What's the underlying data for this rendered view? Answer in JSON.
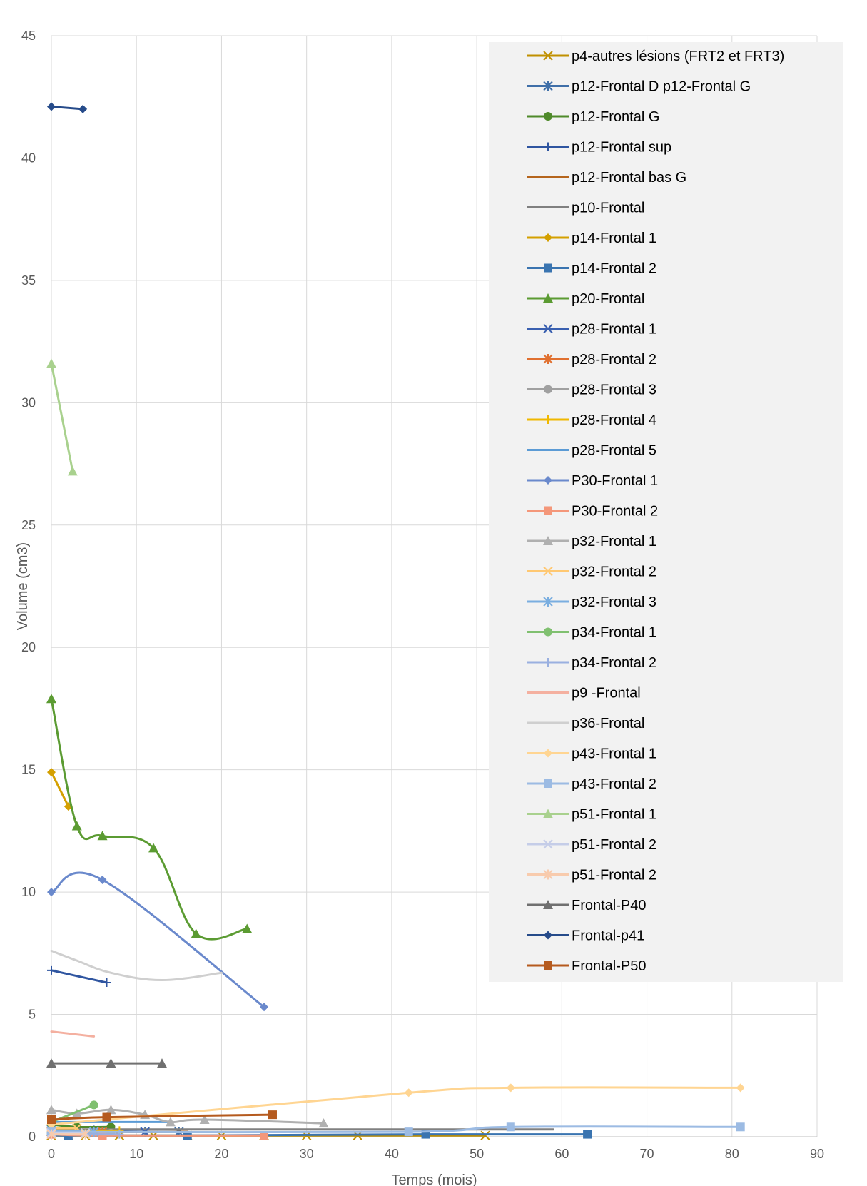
{
  "chart_data": {
    "type": "line",
    "xlabel": "Temps (mois)",
    "ylabel": "Volume (cm3)",
    "xlim": [
      0,
      90
    ],
    "ylim": [
      0,
      45
    ],
    "x_ticks": [
      "0",
      "10",
      "20",
      "30",
      "40",
      "50",
      "60",
      "70",
      "80",
      "90"
    ],
    "y_ticks": [
      "0",
      "5",
      "10",
      "15",
      "20",
      "25",
      "30",
      "35",
      "40",
      "45"
    ],
    "grid": true,
    "legend_position": "top-right",
    "series": [
      {
        "name": "p4-autres lésions (FRT2 et FRT3)",
        "color": "#c09000",
        "marker": "x",
        "x": [
          0,
          2,
          4,
          8,
          12,
          16,
          20,
          25,
          30,
          36,
          51
        ],
        "y": [
          0.05,
          0.05,
          0.05,
          0.05,
          0.05,
          0.05,
          0.05,
          0.05,
          0.05,
          0.05,
          0.05
        ]
      },
      {
        "name": "p12-Frontal D p12-Frontal G",
        "color": "#3f6fa8",
        "marker": "asterisk",
        "x": [
          0,
          5,
          11,
          15
        ],
        "y": [
          0.3,
          0.25,
          0.2,
          0.2
        ]
      },
      {
        "name": "p12-Frontal G",
        "color": "#4f8a2a",
        "marker": "circle",
        "x": [
          0,
          3,
          7
        ],
        "y": [
          0.5,
          0.4,
          0.4
        ]
      },
      {
        "name": "p12-Frontal sup",
        "color": "#2f55a0",
        "marker": "plus",
        "x": [
          0,
          6.5
        ],
        "y": [
          6.8,
          6.3
        ]
      },
      {
        "name": "p12-Frontal bas G",
        "color": "#b5651d",
        "marker": "none",
        "x": [
          0,
          8,
          16
        ],
        "y": [
          0.3,
          0.2,
          0.2
        ]
      },
      {
        "name": "p10-Frontal",
        "color": "#808080",
        "marker": "none",
        "x": [
          0,
          20,
          40,
          59
        ],
        "y": [
          0.3,
          0.3,
          0.3,
          0.3
        ]
      },
      {
        "name": "p14-Frontal 1",
        "color": "#d4a000",
        "marker": "diamond",
        "x": [
          0,
          2
        ],
        "y": [
          14.9,
          13.5
        ]
      },
      {
        "name": "p14-Frontal 2",
        "color": "#3a74b0",
        "marker": "square",
        "x": [
          0,
          2,
          16,
          44,
          63
        ],
        "y": [
          0.1,
          0.05,
          0.05,
          0.1,
          0.1
        ]
      },
      {
        "name": "p20-Frontal",
        "color": "#5b9b32",
        "marker": "triangle",
        "x": [
          0,
          3,
          6,
          12,
          17,
          23
        ],
        "y": [
          17.9,
          12.7,
          12.3,
          11.8,
          8.3,
          8.5
        ]
      },
      {
        "name": "p28-Frontal 1",
        "color": "#3a60b0",
        "marker": "x",
        "x": [
          0,
          11
        ],
        "y": [
          0.2,
          0.2
        ]
      },
      {
        "name": "p28-Frontal 2",
        "color": "#e07030",
        "marker": "asterisk",
        "x": [
          0,
          6
        ],
        "y": [
          0.2,
          0.2
        ]
      },
      {
        "name": "p28-Frontal 3",
        "color": "#a0a0a0",
        "marker": "circle",
        "x": [
          0,
          7
        ],
        "y": [
          0.15,
          0.15
        ]
      },
      {
        "name": "p28-Frontal 4",
        "color": "#f0b800",
        "marker": "plus",
        "x": [
          0,
          8
        ],
        "y": [
          0.25,
          0.25
        ]
      },
      {
        "name": "p28-Frontal 5",
        "color": "#5b9bd5",
        "marker": "none",
        "x": [
          0,
          14
        ],
        "y": [
          0.6,
          0.6
        ]
      },
      {
        "name": "P30-Frontal 1",
        "color": "#6a89cc",
        "marker": "diamond",
        "x": [
          0,
          6,
          25
        ],
        "y": [
          10,
          10.5,
          5.3
        ]
      },
      {
        "name": "P30-Frontal 2",
        "color": "#f4977a",
        "marker": "square",
        "x": [
          0,
          6,
          25
        ],
        "y": [
          0.1,
          0.05,
          0.05
        ]
      },
      {
        "name": "p32-Frontal 1",
        "color": "#b0b0b0",
        "marker": "triangle",
        "x": [
          0,
          3,
          7,
          11,
          14,
          18,
          32
        ],
        "y": [
          1.1,
          0.95,
          1.1,
          0.9,
          0.6,
          0.7,
          0.55
        ]
      },
      {
        "name": "p32-Frontal 2",
        "color": "#ffc872",
        "marker": "x",
        "x": [
          0,
          3
        ],
        "y": [
          0.35,
          0.35
        ]
      },
      {
        "name": "p32-Frontal 3",
        "color": "#7aaee0",
        "marker": "asterisk",
        "x": [
          0,
          5
        ],
        "y": [
          0.25,
          0.2
        ]
      },
      {
        "name": "p34-Frontal 1",
        "color": "#80c070",
        "marker": "circle",
        "x": [
          0,
          5
        ],
        "y": [
          0.6,
          1.3
        ]
      },
      {
        "name": "p34-Frontal 2",
        "color": "#9ab0e0",
        "marker": "plus",
        "x": [
          0,
          8
        ],
        "y": [
          0.1,
          0.1
        ]
      },
      {
        "name": "p9 -Frontal",
        "color": "#f4b0a0",
        "marker": "none",
        "x": [
          0,
          5
        ],
        "y": [
          4.3,
          4.1
        ]
      },
      {
        "name": "p36-Frontal",
        "color": "#cfcfcf",
        "marker": "none",
        "x": [
          0,
          3,
          7,
          13,
          20
        ],
        "y": [
          7.6,
          7.2,
          6.7,
          6.4,
          6.7
        ]
      },
      {
        "name": "p43-Frontal 1",
        "color": "#ffd592",
        "marker": "diamond",
        "x": [
          0,
          42,
          54,
          81
        ],
        "y": [
          0.5,
          1.8,
          2.0,
          2.0
        ]
      },
      {
        "name": "p43-Frontal 2",
        "color": "#9cbbe3",
        "marker": "square",
        "x": [
          0,
          42,
          54,
          81
        ],
        "y": [
          0.2,
          0.2,
          0.4,
          0.4
        ]
      },
      {
        "name": "p51-Frontal 1",
        "color": "#a9d18e",
        "marker": "triangle",
        "x": [
          0,
          2.5
        ],
        "y": [
          31.6,
          27.2
        ]
      },
      {
        "name": "p51-Frontal 2",
        "color": "#c5cde8",
        "marker": "x",
        "x": [
          0,
          4
        ],
        "y": [
          0.15,
          0.15
        ]
      },
      {
        "name": "p51-Frontal 2",
        "color": "#f8cbad",
        "marker": "asterisk",
        "x": [
          0,
          4
        ],
        "y": [
          0.1,
          0.1
        ]
      },
      {
        "name": "Frontal-P40",
        "color": "#707070",
        "marker": "triangle",
        "x": [
          0,
          7,
          13
        ],
        "y": [
          3.0,
          3.0,
          3.0
        ]
      },
      {
        "name": "Frontal-p41",
        "color": "#264b8a",
        "marker": "diamond",
        "x": [
          0,
          3.7
        ],
        "y": [
          42.1,
          42.0
        ]
      },
      {
        "name": "Frontal-P50",
        "color": "#b55a1e",
        "marker": "square",
        "x": [
          0,
          6.5,
          26
        ],
        "y": [
          0.7,
          0.8,
          0.9
        ]
      }
    ]
  }
}
